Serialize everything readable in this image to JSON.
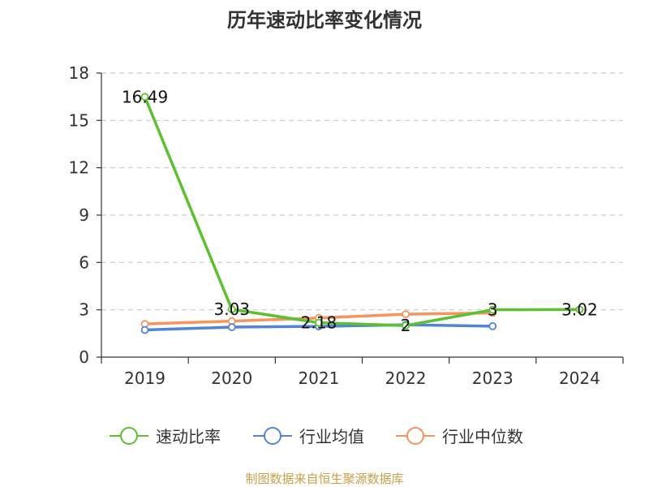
{
  "chart_data": {
    "type": "line",
    "title": "历年速动比率变化情况",
    "categories": [
      "2019",
      "2020",
      "2021",
      "2022",
      "2023",
      "2024"
    ],
    "ylim": [
      0,
      18
    ],
    "yticks": [
      0,
      3,
      6,
      9,
      12,
      15,
      18
    ],
    "grid": true,
    "legend_position": "bottom",
    "series": [
      {
        "name": "速动比率",
        "color": "#5cc130",
        "values": [
          16.49,
          3.03,
          2.18,
          2,
          3,
          3.02
        ],
        "labels": [
          "16.49",
          "3.03",
          "2.18",
          "2",
          "3",
          "3.02"
        ]
      },
      {
        "name": "行业均值",
        "color": "#4f84d8",
        "values": [
          1.72,
          1.9,
          1.95,
          2.05,
          1.96,
          null
        ]
      },
      {
        "name": "行业中位数",
        "color": "#f8935c",
        "values": [
          2.1,
          2.28,
          2.48,
          2.72,
          2.8,
          null
        ]
      }
    ]
  },
  "source": "制图数据来自恒生聚源数据库"
}
